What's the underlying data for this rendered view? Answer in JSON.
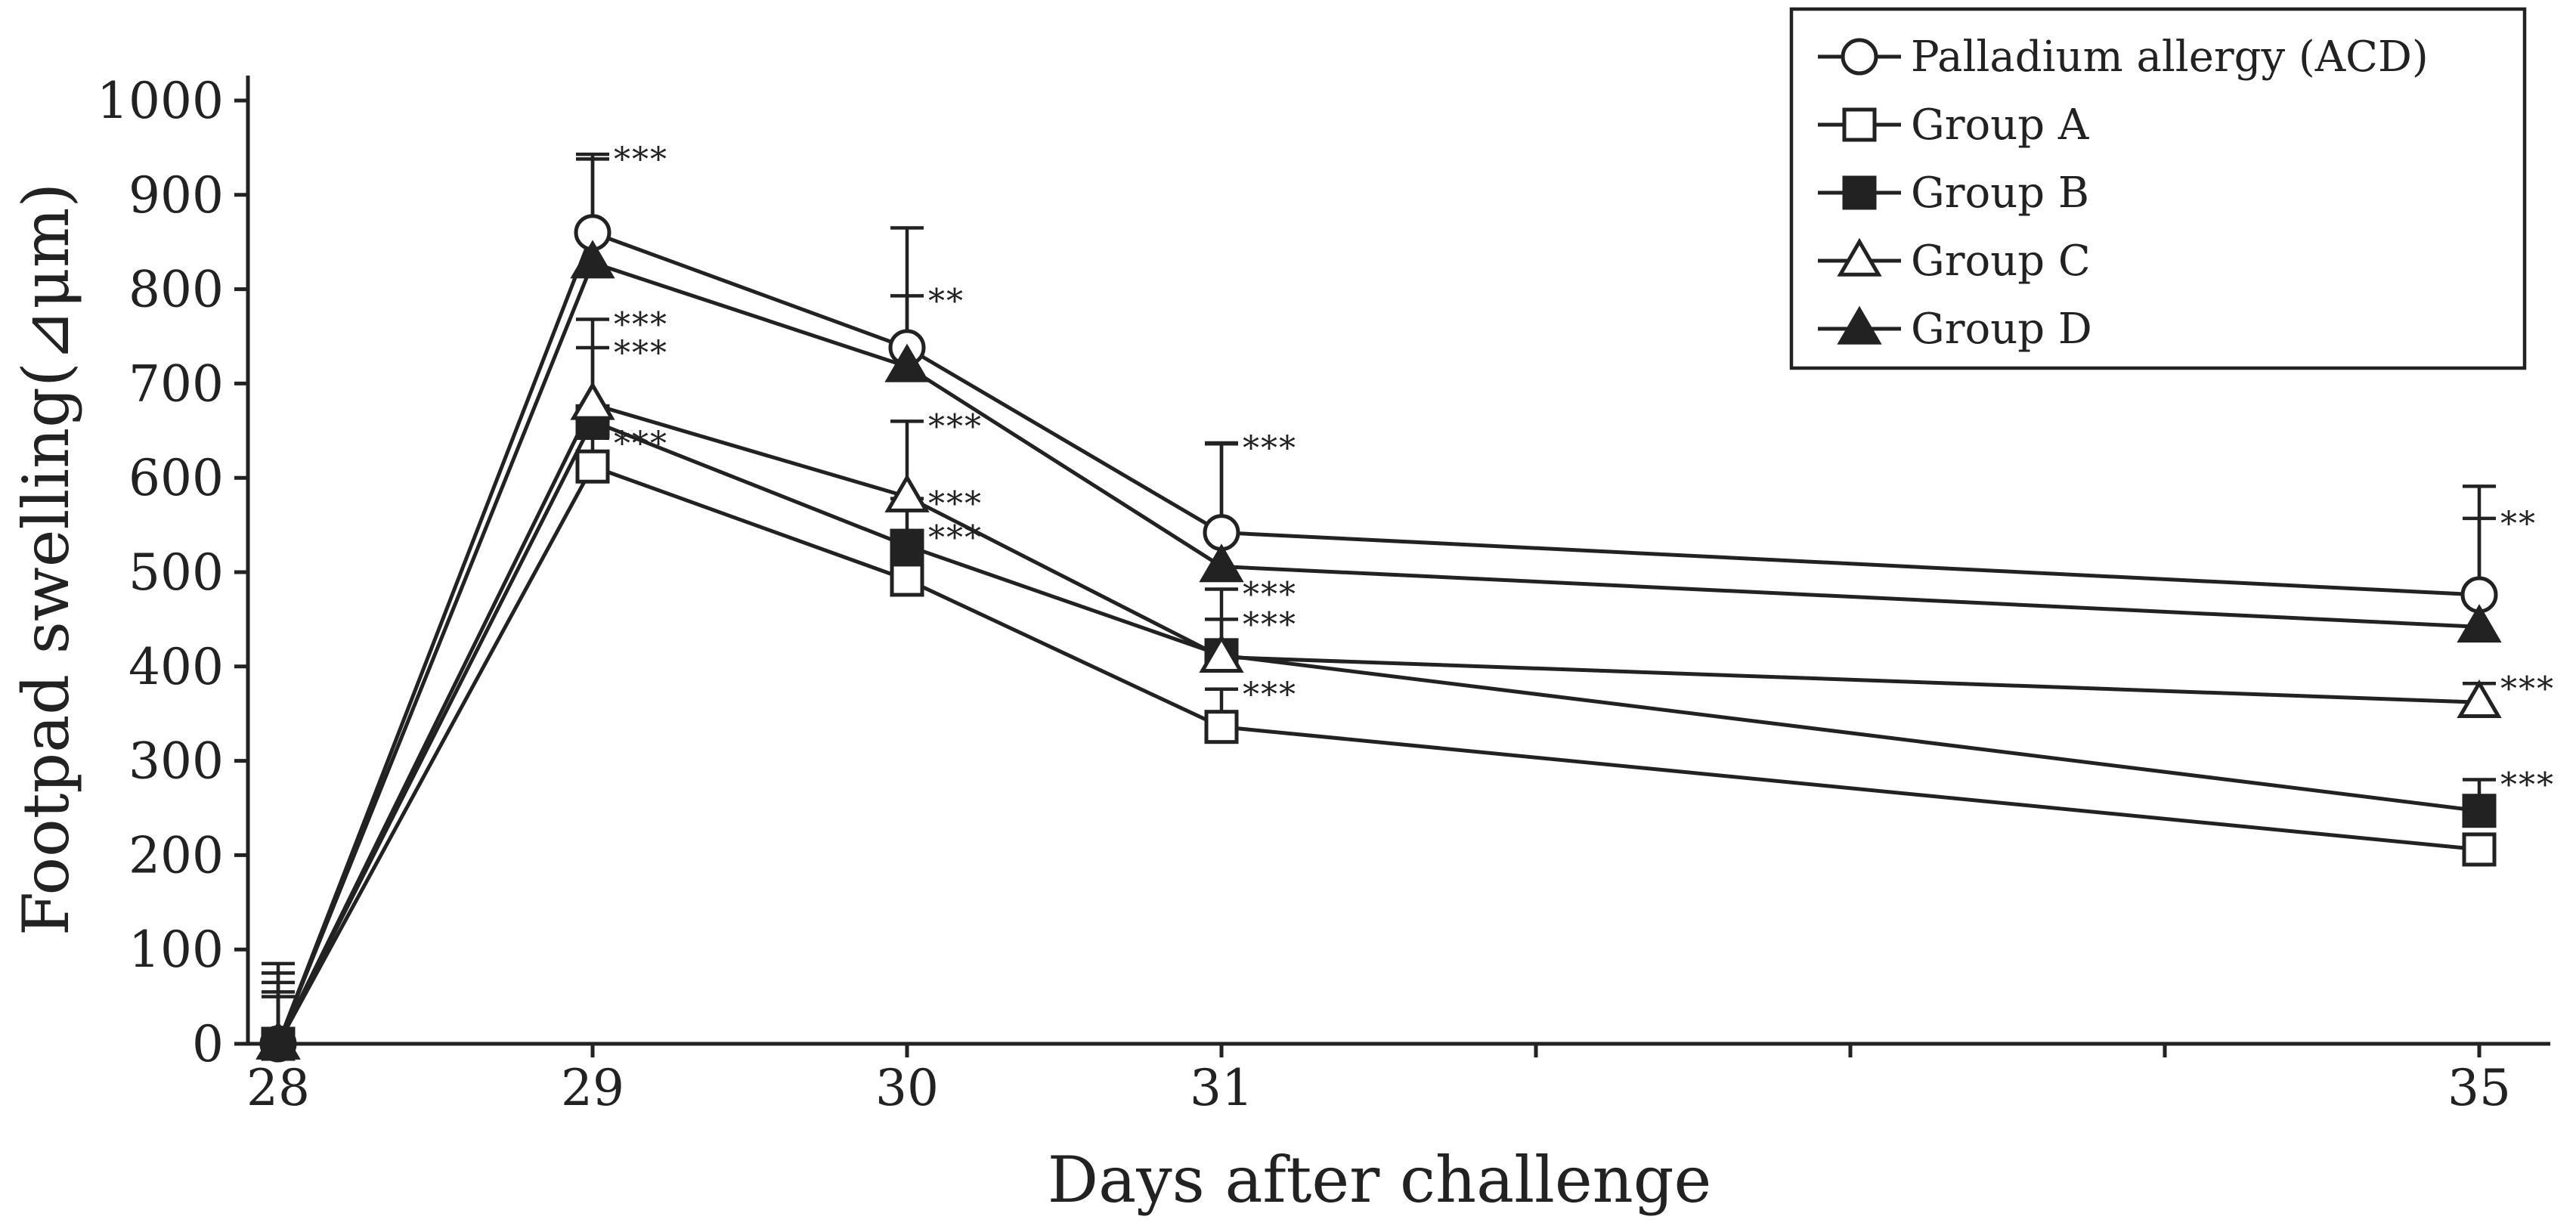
{
  "chart_data": {
    "type": "line",
    "title": "",
    "xlabel": "Days after challenge",
    "ylabel": "Footpad swelling(⊿μm)",
    "x": [
      28,
      29,
      30,
      31,
      35
    ],
    "xlim": [
      28,
      35.2
    ],
    "ylim": [
      0,
      1000
    ],
    "xticks": [
      28,
      29,
      30,
      31,
      32,
      33,
      34,
      35
    ],
    "xtick_labels": [
      "28",
      "29",
      "30",
      "31",
      "",
      "",
      "",
      "35"
    ],
    "yticks": [
      0,
      100,
      200,
      300,
      400,
      500,
      600,
      700,
      800,
      900,
      1000
    ],
    "ytick_labels": [
      "0",
      "100",
      "200",
      "300",
      "400",
      "500",
      "600",
      "700",
      "800",
      "900",
      "1000"
    ],
    "legend_position": "top-right",
    "series": [
      {
        "name": "Palladium allergy (ACD)",
        "marker": "circle-open",
        "values": [
          0,
          860,
          738,
          542,
          476
        ],
        "errors": [
          85,
          83,
          127,
          95,
          115
        ],
        "significance": [
          "",
          "***",
          "",
          "***",
          ""
        ]
      },
      {
        "name": "Group A",
        "marker": "square-open",
        "values": [
          0,
          612,
          492,
          336,
          206
        ],
        "errors": [
          50,
          30,
          50,
          40,
          10
        ],
        "significance": [
          "",
          "***",
          "***",
          "***",
          ""
        ]
      },
      {
        "name": "Group B",
        "marker": "square-filled",
        "values": [
          0,
          660,
          528,
          412,
          247
        ],
        "errors": [
          75,
          78,
          50,
          70,
          33
        ],
        "significance": [
          "",
          "***",
          "***",
          "***",
          "***"
        ]
      },
      {
        "name": "Group C",
        "marker": "triangle-open",
        "values": [
          0,
          678,
          580,
          410,
          362
        ],
        "errors": [
          65,
          90,
          80,
          40,
          20
        ],
        "significance": [
          "",
          "***",
          "***",
          "***",
          "***"
        ]
      },
      {
        "name": "Group D",
        "marker": "triangle-filled",
        "values": [
          0,
          828,
          718,
          506,
          442
        ],
        "errors": [
          55,
          110,
          75,
          130,
          115
        ],
        "significance": [
          "",
          "",
          "**",
          "",
          "**"
        ]
      }
    ]
  }
}
